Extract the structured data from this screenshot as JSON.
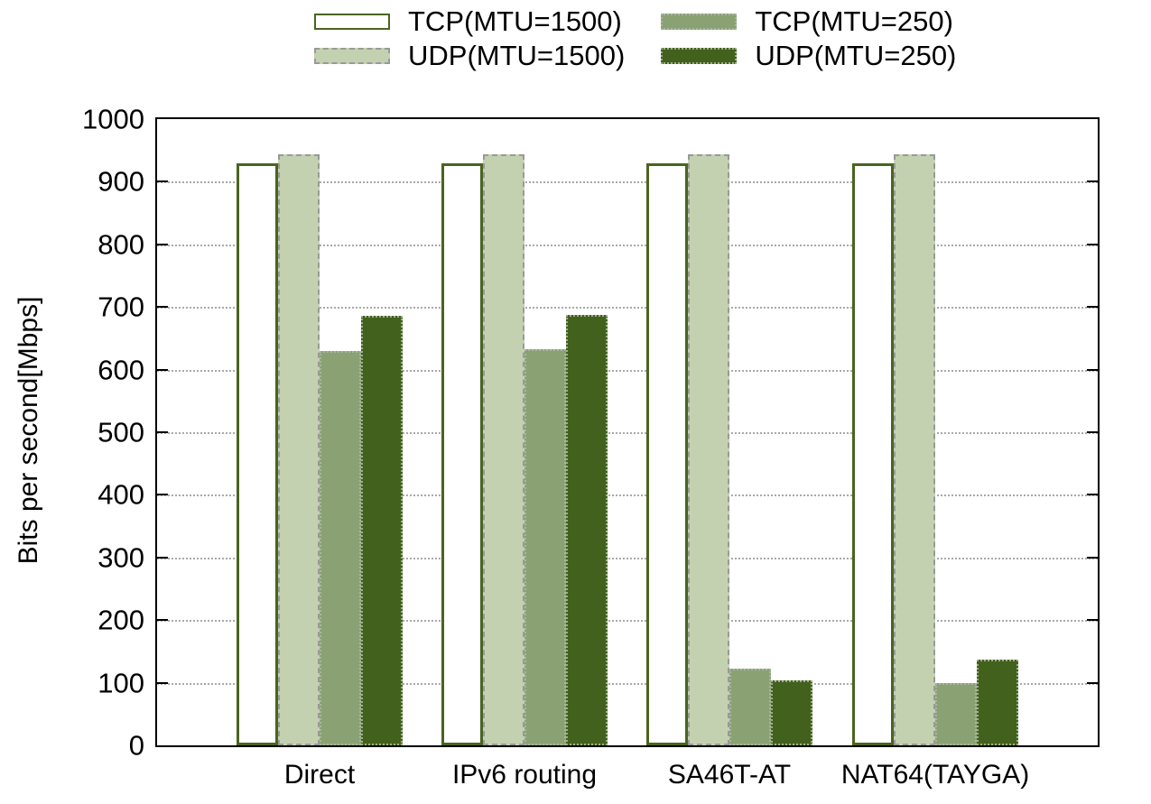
{
  "chart_data": {
    "type": "bar",
    "title": "",
    "xlabel": "",
    "ylabel": "Bits per second[Mbps]",
    "ylim": [
      0,
      1000
    ],
    "yticks": [
      0,
      100,
      200,
      300,
      400,
      500,
      600,
      700,
      800,
      900,
      1000
    ],
    "grid_values": [
      100,
      200,
      300,
      400,
      500,
      600,
      700,
      800,
      900
    ],
    "grid": "horizontal dotted",
    "legend_position": "top-center",
    "categories": [
      "Direct",
      "IPv6 routing",
      "SA46T-AT",
      "NAT64(TAYGA)"
    ],
    "series": [
      {
        "name": "TCP(MTU=1500)",
        "values": [
          930,
          930,
          930,
          930
        ],
        "fill": "#ffffff",
        "border_style": "solid",
        "border_color": "#4a6420",
        "border_width": 3
      },
      {
        "name": "UDP(MTU=1500)",
        "values": [
          944,
          944,
          944,
          944
        ],
        "fill": "#c4d1b0",
        "border_style": "dashed",
        "border_color": "#999999",
        "border_width": 2
      },
      {
        "name": "TCP(MTU=250)",
        "values": [
          630,
          632,
          123,
          99
        ],
        "fill": "#8aa273",
        "border_style": "dotted",
        "border_color": "#aab4a0",
        "border_width": 2
      },
      {
        "name": "UDP(MTU=250)",
        "values": [
          686,
          687,
          104,
          137
        ],
        "fill": "#42611c",
        "border_style": "dotted",
        "border_color": "#9fae8c",
        "border_width": 2
      }
    ]
  },
  "colors": {
    "axis": "#000000",
    "grid": "#aaaaaa",
    "background": "#ffffff",
    "text": "#000000"
  }
}
